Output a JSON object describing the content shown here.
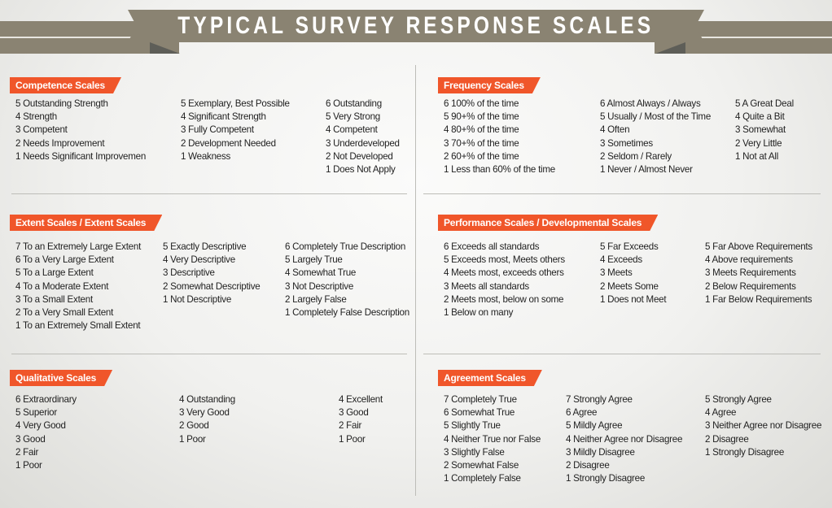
{
  "title": "TYPICAL SURVEY RESPONSE SCALES",
  "colors": {
    "banner": "#8a8372",
    "tag": "#f0562a",
    "fold": "#5e5e58",
    "divider": "#bdbdb8"
  },
  "sections": [
    {
      "id": "competence",
      "label": "Competence Scales",
      "columns": [
        [
          "5 Outstanding Strength",
          "4 Strength",
          "3 Competent",
          "2 Needs Improvement",
          "1 Needs Significant Improvemen"
        ],
        [
          "5 Exemplary, Best Possible",
          "4 Significant Strength",
          "3 Fully Competent",
          "2 Development Needed",
          "1 Weakness"
        ],
        [
          "6 Outstanding",
          "5 Very Strong",
          "4 Competent",
          "3 Underdeveloped",
          "2 Not Developed",
          "1 Does Not Apply"
        ]
      ]
    },
    {
      "id": "frequency",
      "label": "Frequency Scales",
      "columns": [
        [
          "6 100% of the time",
          "5 90+% of the time",
          "4 80+% of the time",
          "3 70+% of the time",
          "2 60+% of the time",
          "1 Less than 60% of the time"
        ],
        [
          "6 Almost Always / Always",
          "5 Usually / Most of the Time",
          "4 Often",
          "3 Sometimes",
          "2 Seldom / Rarely",
          "1 Never / Almost Never"
        ],
        [
          "5 A Great Deal",
          "4 Quite a Bit",
          "3 Somewhat",
          "2 Very Little",
          "1 Not at All"
        ]
      ]
    },
    {
      "id": "extent",
      "label": "Extent Scales  /  Extent Scales",
      "columns": [
        [
          "7 To an Extremely Large Extent",
          "6 To a Very Large Extent",
          "5 To a Large Extent",
          "4 To a Moderate Extent",
          "3 To a Small Extent",
          "2 To a Very Small Extent",
          "1 To an Extremely Small Extent"
        ],
        [
          "5 Exactly Descriptive",
          "4 Very Descriptive",
          "3 Descriptive",
          "2 Somewhat Descriptive",
          "1 Not Descriptive"
        ],
        [
          "6 Completely True Description",
          "5 Largely True",
          "4 Somewhat True",
          "3 Not Descriptive",
          "2 Largely False",
          "1 Completely False Description"
        ]
      ]
    },
    {
      "id": "performance",
      "label": "Performance Scales  /  Developmental Scales",
      "columns": [
        [
          "6 Exceeds all standards",
          "5 Exceeds most, Meets others",
          "4 Meets most, exceeds others",
          "3 Meets all standards",
          "2 Meets most, below on some",
          "1 Below on many"
        ],
        [
          "5 Far Exceeds",
          "4 Exceeds",
          "3 Meets",
          "2 Meets Some",
          "1 Does not Meet"
        ],
        [
          "5 Far Above Requirements",
          "4 Above requirements",
          "3 Meets Requirements",
          "2 Below Requirements",
          "1 Far Below Requirements"
        ]
      ]
    },
    {
      "id": "qualitative",
      "label": "Qualitative Scales",
      "columns": [
        [
          "6 Extraordinary",
          "5 Superior",
          "4 Very Good",
          "3 Good",
          "2 Fair",
          "1 Poor"
        ],
        [
          "4 Outstanding",
          "3 Very Good",
          "2 Good",
          "1 Poor"
        ],
        [
          "4 Excellent",
          "3 Good",
          "2 Fair",
          "1 Poor"
        ]
      ]
    },
    {
      "id": "agreement",
      "label": "Agreement Scales",
      "columns": [
        [
          "7 Completely True",
          "6 Somewhat True",
          "5 Slightly True",
          "4 Neither True nor False",
          "3 Slightly False",
          "2 Somewhat False",
          "1 Completely False"
        ],
        [
          "7 Strongly Agree",
          "6 Agree",
          "5 Mildly Agree",
          "4 Neither Agree nor Disagree",
          "3 Mildly Disagree",
          "2 Disagree",
          "1 Strongly Disagree"
        ],
        [
          "5 Strongly Agree",
          "4 Agree",
          "3 Neither Agree nor Disagree",
          "2 Disagree",
          "1 Strongly Disagree"
        ]
      ]
    }
  ]
}
